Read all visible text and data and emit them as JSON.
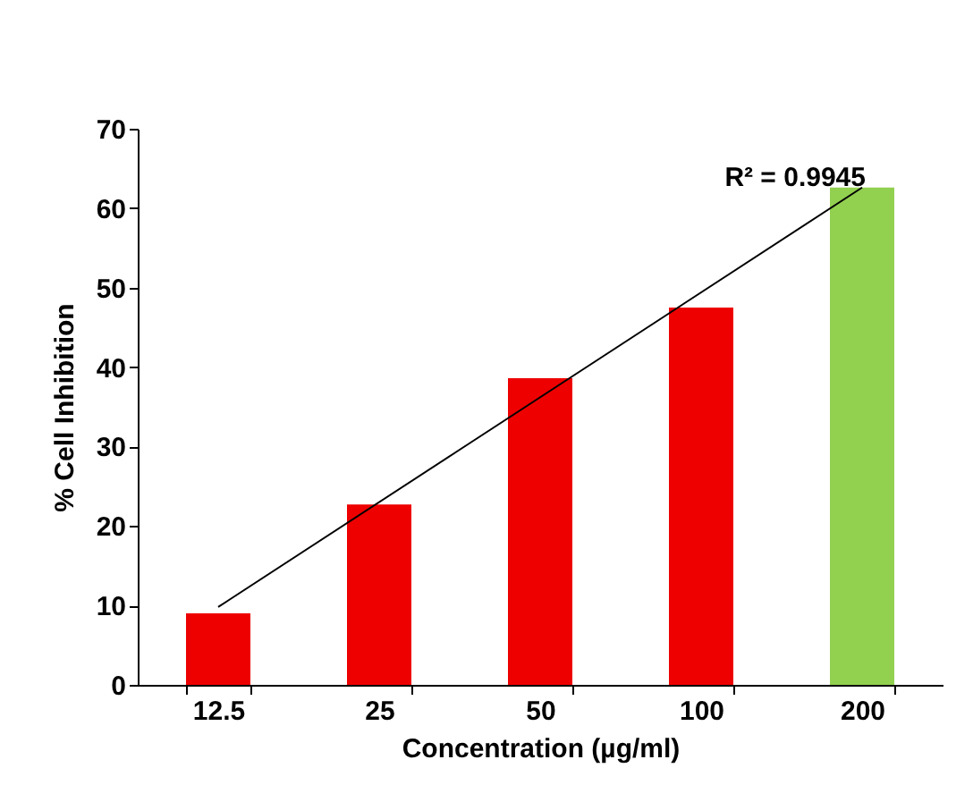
{
  "chart_data": {
    "type": "bar",
    "xlabel": "Concentration (µg/ml)",
    "ylabel": "% Cell Inhibition",
    "categories": [
      "12.5",
      "25",
      "50",
      "100",
      "200"
    ],
    "series": [
      {
        "colors": [
          "#ee0000",
          "#ee0000",
          "#ee0000",
          "#ee0000",
          "#92d050"
        ],
        "values": [
          9,
          22.7,
          38.6,
          47.5,
          62.6
        ]
      },
      {
        "type": "line",
        "color": "#000000",
        "x": [
          "12.5",
          "200"
        ],
        "values": [
          9.8,
          62.6
        ]
      }
    ],
    "annotations": [
      {
        "text": "R² = 0.9945",
        "x": "200",
        "y": 62.6
      }
    ],
    "ylim": [
      0,
      70
    ],
    "yticks": [
      0,
      10,
      20,
      30,
      40,
      50,
      60,
      70
    ],
    "grid": false
  }
}
